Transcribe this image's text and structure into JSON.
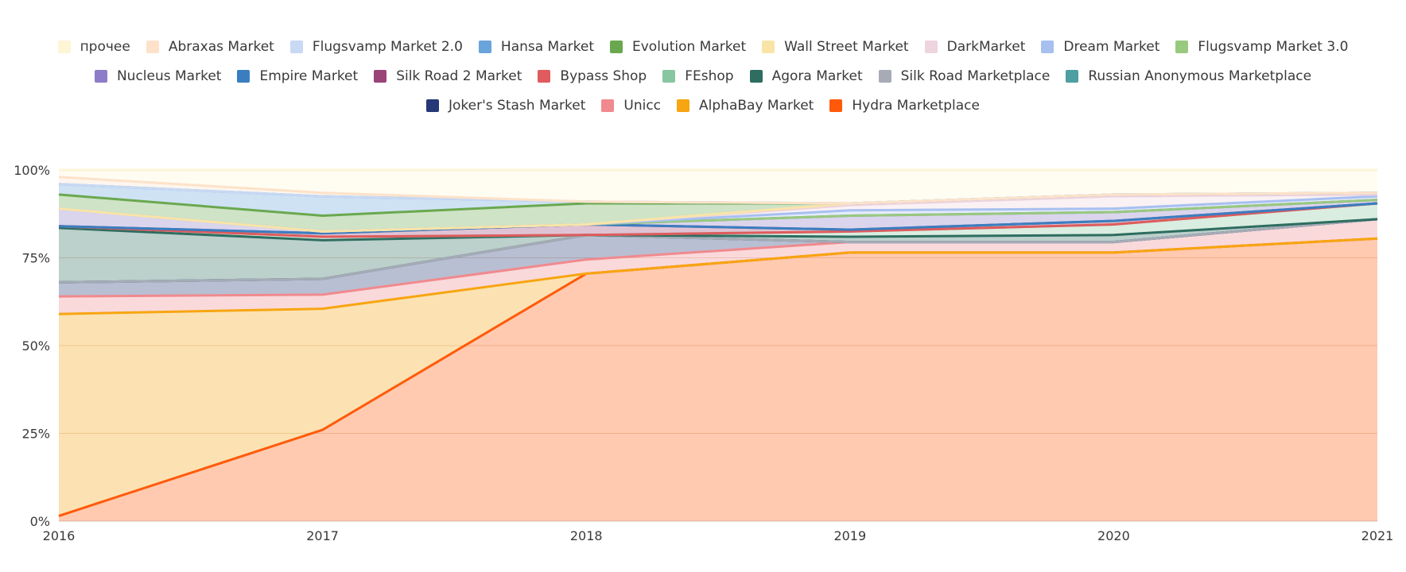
{
  "chart_data": {
    "type": "area",
    "stacked": true,
    "normalized": true,
    "title": "",
    "xlabel": "",
    "ylabel": "",
    "x": [
      "2016",
      "2017",
      "2018",
      "2019",
      "2020",
      "2021"
    ],
    "ylim": [
      0,
      100
    ],
    "yticks": [
      "0%",
      "25%",
      "50%",
      "75%",
      "100%"
    ],
    "grid": true,
    "legend_position": "top",
    "legend_order": [
      "прочее",
      "Abraxas Market",
      "Flugsvamp Market 2.0",
      "Hansa Market",
      "Evolution Market",
      "Wall Street Market",
      "DarkMarket",
      "Dream Market",
      "Flugsvamp Market 3.0",
      "Nucleus Market",
      "Empire Market",
      "Silk Road 2 Market",
      "Bypass Shop",
      "FEshop",
      "Agora Market",
      "Silk Road Marketplace",
      "Russian Anonymous Marketplace",
      "Joker's Stash Market",
      "Unicc",
      "AlphaBay Market",
      "Hydra Marketplace"
    ],
    "series": [
      {
        "name": "Hydra Marketplace",
        "color": "#ff5a0a",
        "values": [
          1.5,
          26,
          70.5,
          76.5,
          76.5,
          80.5
        ]
      },
      {
        "name": "AlphaBay Market",
        "color": "#f7a511",
        "values": [
          57.5,
          34.5,
          0,
          0,
          0,
          0
        ]
      },
      {
        "name": "Unicc",
        "color": "#f08a8e",
        "values": [
          5,
          4,
          4,
          3,
          3,
          5.5
        ]
      },
      {
        "name": "Joker's Stash Market",
        "color": "#263877",
        "values": [
          4,
          4.5,
          7,
          0,
          0,
          0
        ]
      },
      {
        "name": "Russian Anonymous Marketplace",
        "color": "#4f9ea1",
        "values": [
          0,
          0,
          0,
          0,
          0,
          0
        ]
      },
      {
        "name": "Silk Road Marketplace",
        "color": "#a6abb5",
        "values": [
          0,
          0,
          0,
          0,
          0,
          0
        ]
      },
      {
        "name": "Agora Market",
        "color": "#2e6d60",
        "values": [
          15.5,
          11,
          0,
          1.5,
          2,
          0
        ]
      },
      {
        "name": "FEshop",
        "color": "#88c6a0",
        "values": [
          0.5,
          1,
          0,
          1.5,
          3,
          4.5
        ]
      },
      {
        "name": "Bypass Shop",
        "color": "#df5b5d",
        "values": [
          0,
          0,
          0,
          0,
          0,
          0
        ]
      },
      {
        "name": "Silk Road 2 Market",
        "color": "#9b4478",
        "values": [
          0,
          1,
          3,
          0.5,
          1,
          0
        ]
      },
      {
        "name": "Empire Market",
        "color": "#3a7ec0",
        "values": [
          0,
          0,
          0,
          0,
          0,
          0
        ]
      },
      {
        "name": "Nucleus Market",
        "color": "#8d7dc8",
        "values": [
          5,
          0.5,
          0,
          4,
          2.5,
          1
        ]
      },
      {
        "name": "Flugsvamp Market 3.0",
        "color": "#98c97e",
        "values": [
          0,
          0,
          0,
          0,
          0,
          0
        ]
      },
      {
        "name": "Dream Market",
        "color": "#a7c0f0",
        "values": [
          0,
          0,
          0,
          1.5,
          1,
          1
        ]
      },
      {
        "name": "DarkMarket",
        "color": "#eed4de",
        "values": [
          0,
          0,
          0,
          1.5,
          3.5,
          0.5
        ]
      },
      {
        "name": "Wall Street Market",
        "color": "#f9e4a8",
        "values": [
          0,
          0,
          0,
          0.5,
          0.5,
          0.5
        ]
      },
      {
        "name": "Evolution Market",
        "color": "#6aa84f",
        "values": [
          4,
          4.5,
          6,
          0,
          0,
          0
        ]
      },
      {
        "name": "Hansa Market",
        "color": "#6aa4dc",
        "values": [
          3,
          5.5,
          0.5,
          0,
          0,
          0
        ]
      },
      {
        "name": "Flugsvamp Market 2.0",
        "color": "#c8d9f3",
        "values": [
          0,
          0,
          0,
          0,
          0,
          0
        ]
      },
      {
        "name": "Abraxas Market",
        "color": "#fde2c9",
        "values": [
          2,
          1,
          0,
          0,
          0,
          0
        ]
      },
      {
        "name": "прочее",
        "color": "#fef5d6",
        "values": [
          2,
          6.5,
          9,
          9.5,
          7,
          6.5
        ]
      }
    ]
  }
}
